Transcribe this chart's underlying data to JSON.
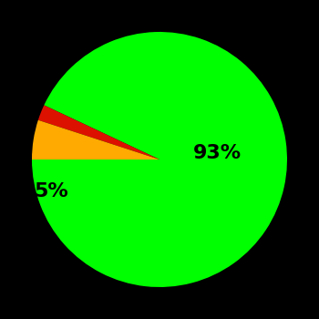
{
  "slices": [
    93,
    2,
    5
  ],
  "colors": [
    "#00ff00",
    "#dd1100",
    "#ffaa00"
  ],
  "labels": [
    "93%",
    "",
    "5%"
  ],
  "background_color": "#000000",
  "text_color": "#000000",
  "label_fontsize": 16,
  "startangle": 180,
  "figsize": [
    3.5,
    3.5
  ],
  "dpi": 100
}
